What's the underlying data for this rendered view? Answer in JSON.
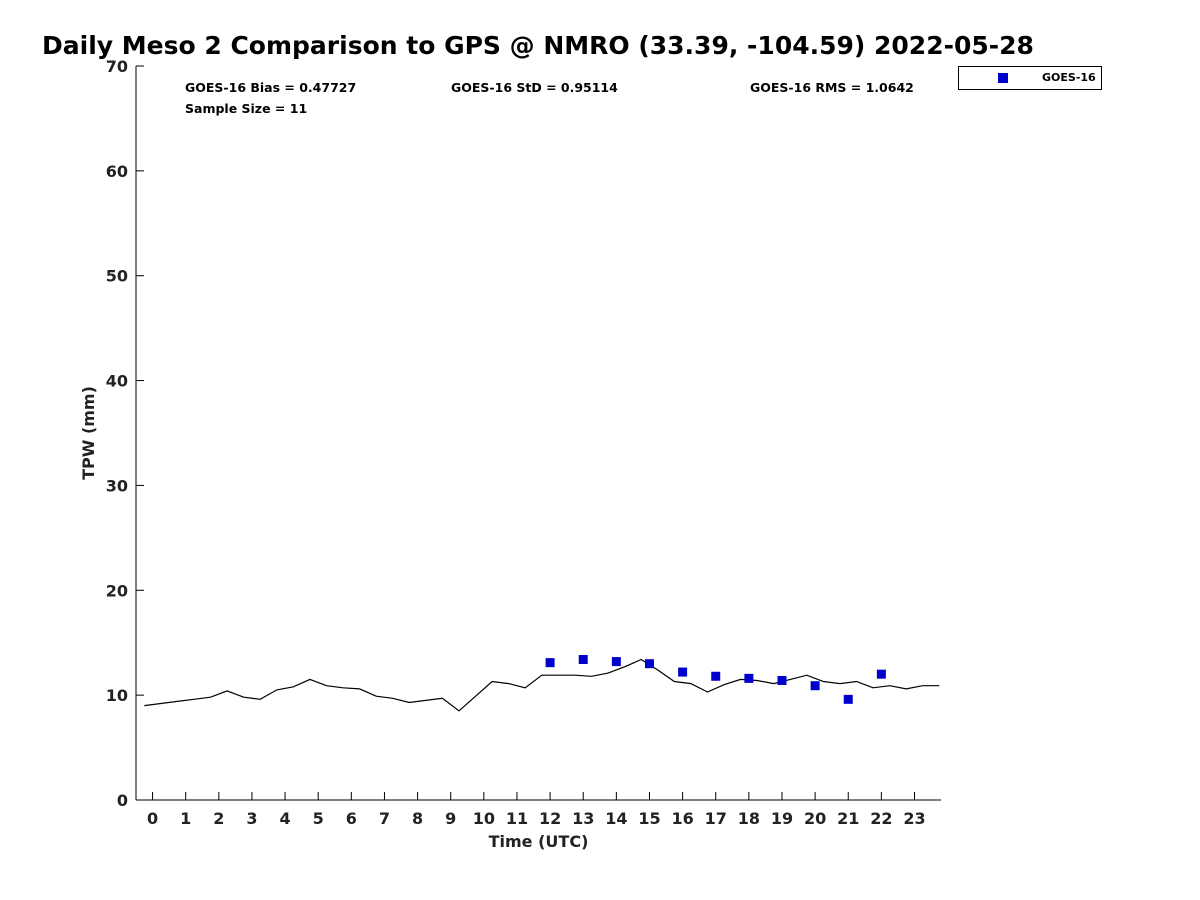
{
  "chart_data": {
    "type": "scatter",
    "title": "Daily Meso 2 Comparison to GPS @ NMRO (33.39, -104.59) 2022-05-28",
    "xlabel": "Time (UTC)",
    "ylabel": "TPW (mm)",
    "xlim": [
      -0.5,
      23.8
    ],
    "ylim": [
      0,
      70
    ],
    "x_ticks": [
      0,
      1,
      2,
      3,
      4,
      5,
      6,
      7,
      8,
      9,
      10,
      11,
      12,
      13,
      14,
      15,
      16,
      17,
      18,
      19,
      20,
      21,
      22,
      23
    ],
    "x_tick_labels": [
      "0",
      "1",
      "2",
      "3",
      "4",
      "5",
      "6",
      "7",
      "8",
      "9",
      "10",
      "11",
      "12",
      "13",
      "14",
      "15",
      "16",
      "17",
      "18",
      "19",
      "20",
      "21",
      "22",
      "23"
    ],
    "y_ticks": [
      0,
      10,
      20,
      30,
      40,
      50,
      60,
      70
    ],
    "y_tick_labels": [
      "0",
      "10",
      "20",
      "30",
      "40",
      "50",
      "60",
      "70"
    ],
    "grid": false,
    "legend": {
      "placement": "top-right",
      "entries": [
        "GOES-16"
      ]
    },
    "stats": {
      "bias": "GOES-16 Bias = 0.47727",
      "std": "GOES-16 StD = 0.95114",
      "rms": "GOES-16 RMS = 1.0642",
      "sample_size": "Sample Size = 11"
    },
    "series": [
      {
        "name": "GOES-16",
        "kind": "scatter",
        "marker": "square",
        "color": "#0000cc",
        "x": [
          12,
          13,
          14,
          15,
          16,
          17,
          18,
          19,
          20,
          21,
          22
        ],
        "y": [
          13.1,
          13.4,
          13.2,
          13.0,
          12.2,
          11.8,
          11.6,
          11.4,
          10.9,
          9.6,
          12.0
        ]
      },
      {
        "kind": "line",
        "color": "#000000",
        "x": [
          -0.25,
          0.25,
          0.75,
          1.25,
          1.75,
          2.25,
          2.75,
          3.25,
          3.75,
          4.25,
          4.75,
          5.25,
          5.75,
          6.25,
          6.75,
          7.25,
          7.75,
          8.25,
          8.75,
          9.25,
          9.75,
          10.25,
          10.75,
          11.25,
          11.75,
          12.25,
          12.75,
          13.25,
          13.75,
          14.25,
          14.75,
          15.25,
          15.75,
          16.25,
          16.75,
          17.25,
          17.75,
          18.25,
          18.75,
          19.25,
          19.75,
          20.25,
          20.75,
          21.25,
          21.75,
          22.25,
          22.75,
          23.25,
          23.75
        ],
        "y": [
          9.0,
          9.2,
          9.4,
          9.6,
          9.8,
          10.4,
          9.8,
          9.6,
          10.5,
          10.8,
          11.5,
          10.9,
          10.7,
          10.6,
          9.9,
          9.7,
          9.3,
          9.5,
          9.7,
          8.5,
          9.9,
          11.3,
          11.1,
          10.7,
          11.9,
          11.9,
          11.9,
          11.8,
          12.1,
          12.7,
          13.4,
          12.4,
          11.3,
          11.1,
          10.3,
          11.0,
          11.5,
          11.4,
          11.1,
          11.5,
          11.9,
          11.3,
          11.1,
          11.3,
          10.7,
          10.9,
          10.6,
          10.9,
          10.9
        ]
      }
    ]
  }
}
